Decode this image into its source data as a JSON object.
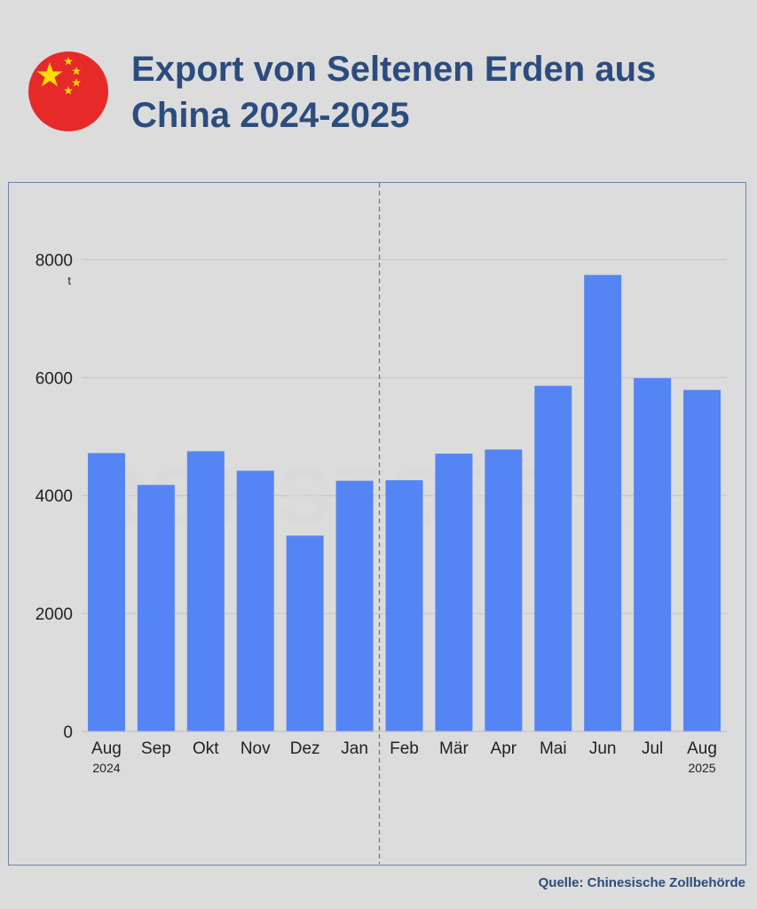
{
  "header": {
    "title": "Export von Seltenen Erden aus China 2024-2025"
  },
  "watermark": "ROHSTOFF",
  "watermark_suffix": ".net",
  "source": "Quelle: Chinesische Zollbehörde",
  "colors": {
    "bar": "#5585f5",
    "title": "#2b4c7e",
    "background": "#dcdcdc",
    "flag_red": "#e62a2a",
    "flag_star": "#ffde00"
  },
  "chart_data": {
    "type": "bar",
    "categories": [
      "Aug",
      "Sep",
      "Okt",
      "Nov",
      "Dez",
      "Jan",
      "Feb",
      "Mär",
      "Apr",
      "Mai",
      "Jun",
      "Jul",
      "Aug"
    ],
    "year_labels": [
      "2024",
      "",
      "",
      "",
      "",
      "",
      "",
      "",
      "",
      "",
      "",
      "",
      "2025"
    ],
    "values": [
      4720,
      4180,
      4750,
      4420,
      3320,
      4250,
      4260,
      4710,
      4780,
      5860,
      7740,
      5990,
      5790
    ],
    "ylabel": "t",
    "ylim": [
      0,
      9000
    ],
    "yticks": [
      0,
      2000,
      4000,
      6000,
      8000
    ],
    "grid": true,
    "divider_after_category": 5
  }
}
